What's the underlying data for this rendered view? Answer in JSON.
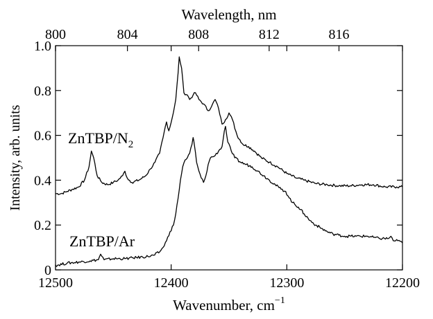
{
  "chart_data": {
    "type": "line",
    "xlabel": "Wavenumber, cm",
    "xlabel_superscript": "−1",
    "x2label": "Wavelength, nm",
    "ylabel": "Intensity, arb. units",
    "xlim": [
      12500,
      12200
    ],
    "x_reversed": true,
    "ylim": [
      0,
      1.0
    ],
    "x_ticks": [
      12500,
      12400,
      12300,
      12200
    ],
    "x_tick_labels": [
      "12500",
      "12400",
      "12300",
      "12200"
    ],
    "y_ticks": [
      0,
      0.2,
      0.4,
      0.6,
      0.8,
      1.0
    ],
    "y_tick_labels": [
      "0",
      "0.2",
      "0.4",
      "0.6",
      "0.8",
      "1.0"
    ],
    "x2_ticks": [
      800,
      804,
      808,
      812,
      816
    ],
    "x2_tick_labels": [
      "800",
      "804",
      "808",
      "812",
      "816"
    ],
    "grid": false,
    "legend": "none",
    "series": [
      {
        "name": "ZnTBP/N",
        "name_subscript": "2",
        "color": "#000000",
        "points": [
          [
            12500,
            0.34
          ],
          [
            12495,
            0.34
          ],
          [
            12490,
            0.35
          ],
          [
            12485,
            0.36
          ],
          [
            12480,
            0.37
          ],
          [
            12475,
            0.4
          ],
          [
            12471,
            0.46
          ],
          [
            12469,
            0.53
          ],
          [
            12467,
            0.5
          ],
          [
            12464,
            0.42
          ],
          [
            12460,
            0.39
          ],
          [
            12455,
            0.38
          ],
          [
            12450,
            0.39
          ],
          [
            12446,
            0.4
          ],
          [
            12442,
            0.42
          ],
          [
            12440,
            0.44
          ],
          [
            12438,
            0.41
          ],
          [
            12434,
            0.39
          ],
          [
            12428,
            0.4
          ],
          [
            12422,
            0.42
          ],
          [
            12418,
            0.45
          ],
          [
            12414,
            0.48
          ],
          [
            12410,
            0.52
          ],
          [
            12407,
            0.59
          ],
          [
            12405,
            0.64
          ],
          [
            12404,
            0.66
          ],
          [
            12402,
            0.62
          ],
          [
            12399,
            0.68
          ],
          [
            12396,
            0.76
          ],
          [
            12394,
            0.88
          ],
          [
            12393,
            0.95
          ],
          [
            12391,
            0.9
          ],
          [
            12389,
            0.79
          ],
          [
            12386,
            0.78
          ],
          [
            12384,
            0.76
          ],
          [
            12381,
            0.78
          ],
          [
            12379,
            0.79
          ],
          [
            12376,
            0.76
          ],
          [
            12372,
            0.74
          ],
          [
            12368,
            0.71
          ],
          [
            12365,
            0.73
          ],
          [
            12362,
            0.76
          ],
          [
            12359,
            0.72
          ],
          [
            12356,
            0.65
          ],
          [
            12353,
            0.67
          ],
          [
            12350,
            0.7
          ],
          [
            12347,
            0.67
          ],
          [
            12343,
            0.6
          ],
          [
            12338,
            0.56
          ],
          [
            12333,
            0.55
          ],
          [
            12328,
            0.53
          ],
          [
            12322,
            0.5
          ],
          [
            12315,
            0.48
          ],
          [
            12308,
            0.46
          ],
          [
            12300,
            0.43
          ],
          [
            12292,
            0.41
          ],
          [
            12285,
            0.4
          ],
          [
            12275,
            0.385
          ],
          [
            12265,
            0.38
          ],
          [
            12255,
            0.375
          ],
          [
            12245,
            0.375
          ],
          [
            12235,
            0.38
          ],
          [
            12225,
            0.38
          ],
          [
            12215,
            0.37
          ],
          [
            12205,
            0.37
          ],
          [
            12200,
            0.37
          ]
        ]
      },
      {
        "name": "ZnTBP/Ar",
        "color": "#000000",
        "points": [
          [
            12500,
            0.02
          ],
          [
            12490,
            0.03
          ],
          [
            12480,
            0.035
          ],
          [
            12470,
            0.04
          ],
          [
            12463,
            0.045
          ],
          [
            12461,
            0.07
          ],
          [
            12458,
            0.045
          ],
          [
            12450,
            0.05
          ],
          [
            12440,
            0.05
          ],
          [
            12430,
            0.055
          ],
          [
            12420,
            0.06
          ],
          [
            12415,
            0.065
          ],
          [
            12410,
            0.08
          ],
          [
            12407,
            0.1
          ],
          [
            12404,
            0.13
          ],
          [
            12401,
            0.17
          ],
          [
            12398,
            0.2
          ],
          [
            12396,
            0.25
          ],
          [
            12394,
            0.32
          ],
          [
            12392,
            0.4
          ],
          [
            12390,
            0.46
          ],
          [
            12388,
            0.49
          ],
          [
            12386,
            0.5
          ],
          [
            12384,
            0.52
          ],
          [
            12382,
            0.56
          ],
          [
            12381,
            0.59
          ],
          [
            12380,
            0.56
          ],
          [
            12378,
            0.48
          ],
          [
            12376,
            0.44
          ],
          [
            12374,
            0.41
          ],
          [
            12372,
            0.39
          ],
          [
            12370,
            0.42
          ],
          [
            12368,
            0.47
          ],
          [
            12366,
            0.5
          ],
          [
            12362,
            0.51
          ],
          [
            12359,
            0.53
          ],
          [
            12356,
            0.55
          ],
          [
            12354,
            0.62
          ],
          [
            12353,
            0.64
          ],
          [
            12351,
            0.57
          ],
          [
            12348,
            0.53
          ],
          [
            12345,
            0.5
          ],
          [
            12340,
            0.48
          ],
          [
            12335,
            0.47
          ],
          [
            12330,
            0.46
          ],
          [
            12325,
            0.44
          ],
          [
            12320,
            0.42
          ],
          [
            12315,
            0.4
          ],
          [
            12310,
            0.38
          ],
          [
            12305,
            0.36
          ],
          [
            12301,
            0.35
          ],
          [
            12299,
            0.33
          ],
          [
            12295,
            0.3
          ],
          [
            12290,
            0.28
          ],
          [
            12285,
            0.25
          ],
          [
            12280,
            0.22
          ],
          [
            12275,
            0.2
          ],
          [
            12270,
            0.185
          ],
          [
            12265,
            0.17
          ],
          [
            12260,
            0.16
          ],
          [
            12255,
            0.155
          ],
          [
            12250,
            0.15
          ],
          [
            12240,
            0.15
          ],
          [
            12230,
            0.15
          ],
          [
            12225,
            0.145
          ],
          [
            12220,
            0.14
          ],
          [
            12212,
            0.14
          ],
          [
            12210,
            0.15
          ],
          [
            12208,
            0.13
          ],
          [
            12204,
            0.13
          ],
          [
            12200,
            0.12
          ]
        ]
      }
    ]
  }
}
